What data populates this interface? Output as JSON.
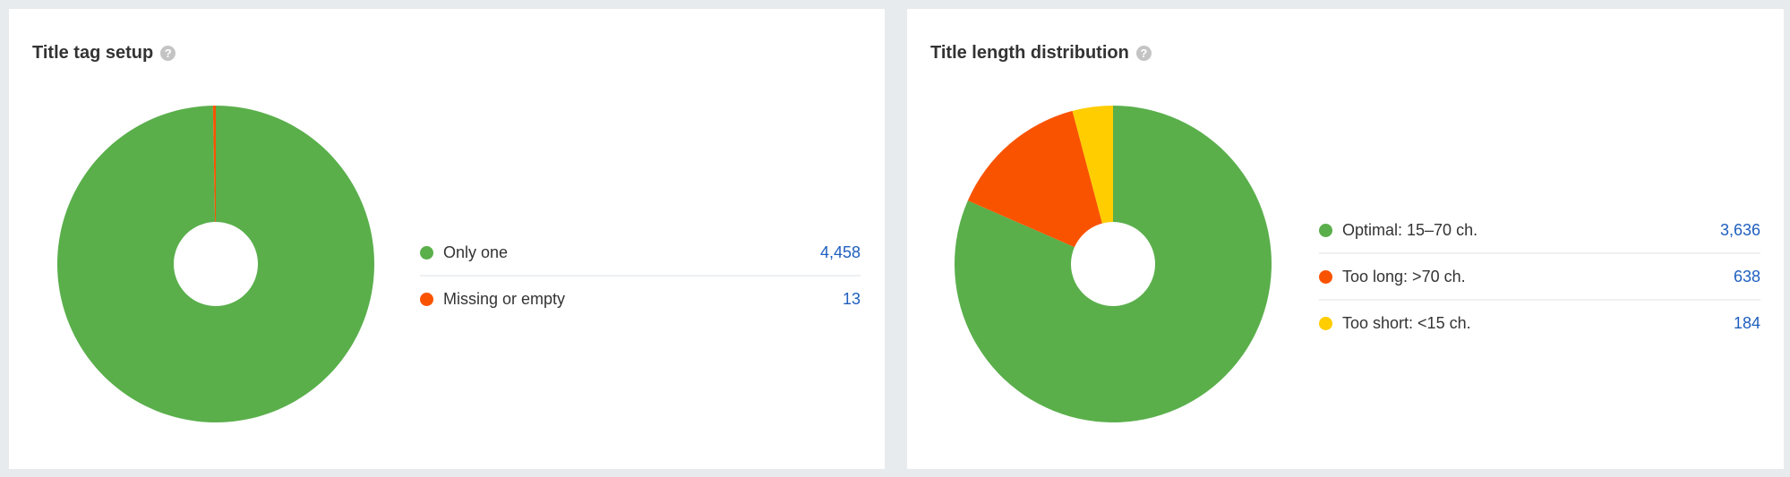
{
  "chart_data": [
    {
      "type": "pie",
      "title": "Title tag setup",
      "donut": true,
      "categories": [
        "Only one",
        "Missing or empty"
      ],
      "values": [
        4458,
        13
      ],
      "value_labels": [
        "4,458",
        "13"
      ],
      "colors": [
        "#5aaf4b",
        "#fa5300"
      ],
      "legend": "right"
    },
    {
      "type": "pie",
      "title": "Title length distribution",
      "donut": true,
      "categories": [
        "Optimal: 15–70 ch.",
        "Too long: >70 ch.",
        "Too short: <15 ch."
      ],
      "values": [
        3636,
        638,
        184
      ],
      "value_labels": [
        "3,636",
        "638",
        "184"
      ],
      "colors": [
        "#5aaf4b",
        "#fa5300",
        "#ffcd00"
      ],
      "legend": "right"
    }
  ],
  "help_icon": "?"
}
